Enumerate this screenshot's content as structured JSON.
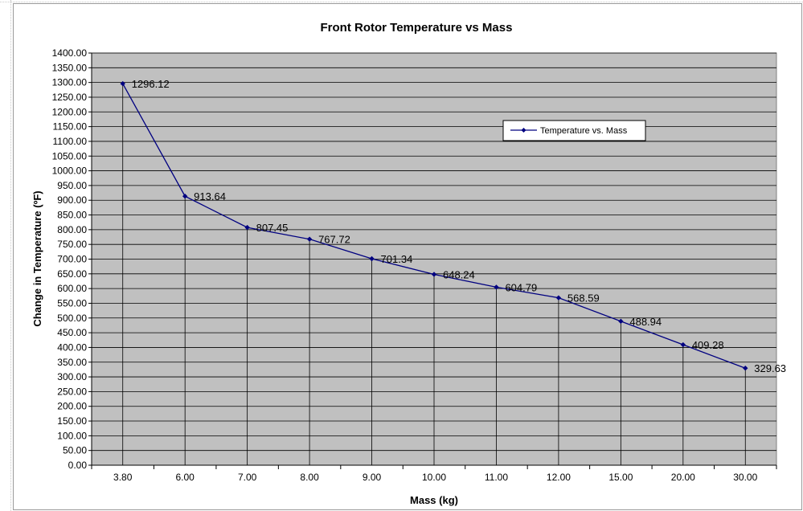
{
  "chart_data": {
    "type": "line",
    "title": "Front Rotor Temperature vs Mass",
    "xlabel": "Mass (kg)",
    "ylabel": "Change in Temperature (ºF)",
    "categories": [
      "3.80",
      "6.00",
      "7.00",
      "8.00",
      "9.00",
      "10.00",
      "11.00",
      "12.00",
      "15.00",
      "20.00",
      "30.00"
    ],
    "series": [
      {
        "name": "Temperature vs. Mass",
        "values": [
          1296.12,
          913.64,
          807.45,
          767.72,
          701.34,
          648.24,
          604.79,
          568.59,
          488.94,
          409.28,
          329.63
        ],
        "labels": [
          "1296.12",
          "913.64",
          "807.45",
          "767.72",
          "701.34",
          "648.24",
          "604.79",
          "568.59",
          "488.94",
          "409.28",
          "329.63"
        ]
      }
    ],
    "ylim": [
      0,
      1400
    ],
    "ytick_step": 50,
    "ytick_labels": [
      "0.00",
      "50.00",
      "100.00",
      "150.00",
      "200.00",
      "250.00",
      "300.00",
      "350.00",
      "400.00",
      "450.00",
      "500.00",
      "550.00",
      "600.00",
      "650.00",
      "700.00",
      "750.00",
      "800.00",
      "850.00",
      "900.00",
      "950.00",
      "1000.00",
      "1050.00",
      "1100.00",
      "1150.00",
      "1200.00",
      "1250.00",
      "1300.00",
      "1350.00",
      "1400.00"
    ],
    "grid": true,
    "drop_lines": true,
    "legend_position": "top-right",
    "colors": {
      "plot_background": "#c0c0c0",
      "series": "#000080",
      "gridline": "#000000"
    }
  }
}
